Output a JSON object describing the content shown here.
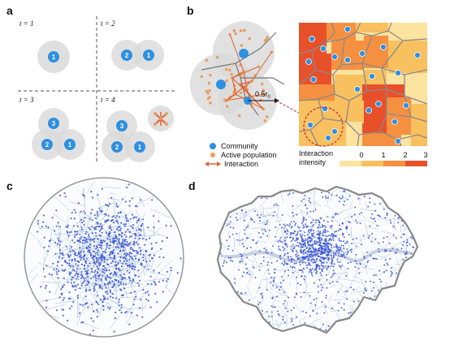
{
  "panels": {
    "a": {
      "letter": "a",
      "timesteps": [
        "t = 1",
        "t = 2",
        "t = 3",
        "t = 4"
      ],
      "community_numbers": {
        "t1": [
          "1"
        ],
        "t2": [
          "2",
          "1"
        ],
        "t3": [
          "3",
          "2",
          "1"
        ],
        "t4": [
          "3",
          "2",
          "1"
        ]
      }
    },
    "b": {
      "letter": "b",
      "radius_label": "0.5r",
      "radius_subscript": "0",
      "legend": {
        "community": "Community",
        "population": "Active population",
        "interaction": "Interaction"
      },
      "colorbar": {
        "title_line1": "Interaction",
        "title_line2": "intensity",
        "ticks": [
          "0",
          "1",
          "2",
          "3"
        ]
      }
    },
    "c": {
      "letter": "c"
    },
    "d": {
      "letter": "d"
    }
  },
  "colors": {
    "community": "#2f8fe0",
    "population": "#e8a060",
    "interaction": "#e06030",
    "circle": "#d9d9d9",
    "intensity_0": "#fde3a0",
    "intensity_1": "#f9c060",
    "intensity_2": "#f59040",
    "intensity_3": "#e8502a",
    "points": "#3a55d6",
    "voronoi": "#9bb8d8",
    "boundary": "#888888"
  }
}
